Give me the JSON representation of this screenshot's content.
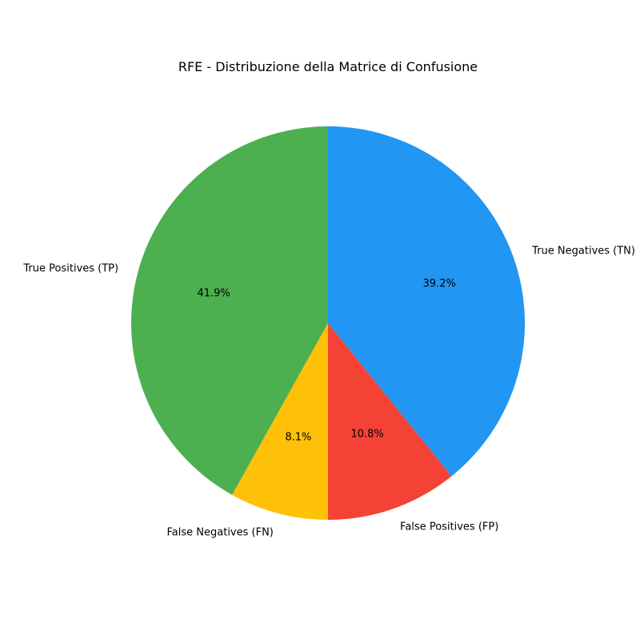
{
  "chart_data": {
    "type": "pie",
    "title": "RFE - Distribuzione della Matrice di Confusione",
    "labels": [
      "True Negatives (TN)",
      "False Positives (FP)",
      "False Negatives (FN)",
      "True Positives (TP)"
    ],
    "values": [
      39.2,
      10.8,
      8.1,
      41.9
    ],
    "value_labels": [
      "39.2%",
      "10.8%",
      "8.1%",
      "41.9%"
    ],
    "colors": [
      "#2196F3",
      "#F44336",
      "#FFC107",
      "#4CAF50"
    ],
    "start_angle": "top",
    "direction": "clockwise"
  }
}
